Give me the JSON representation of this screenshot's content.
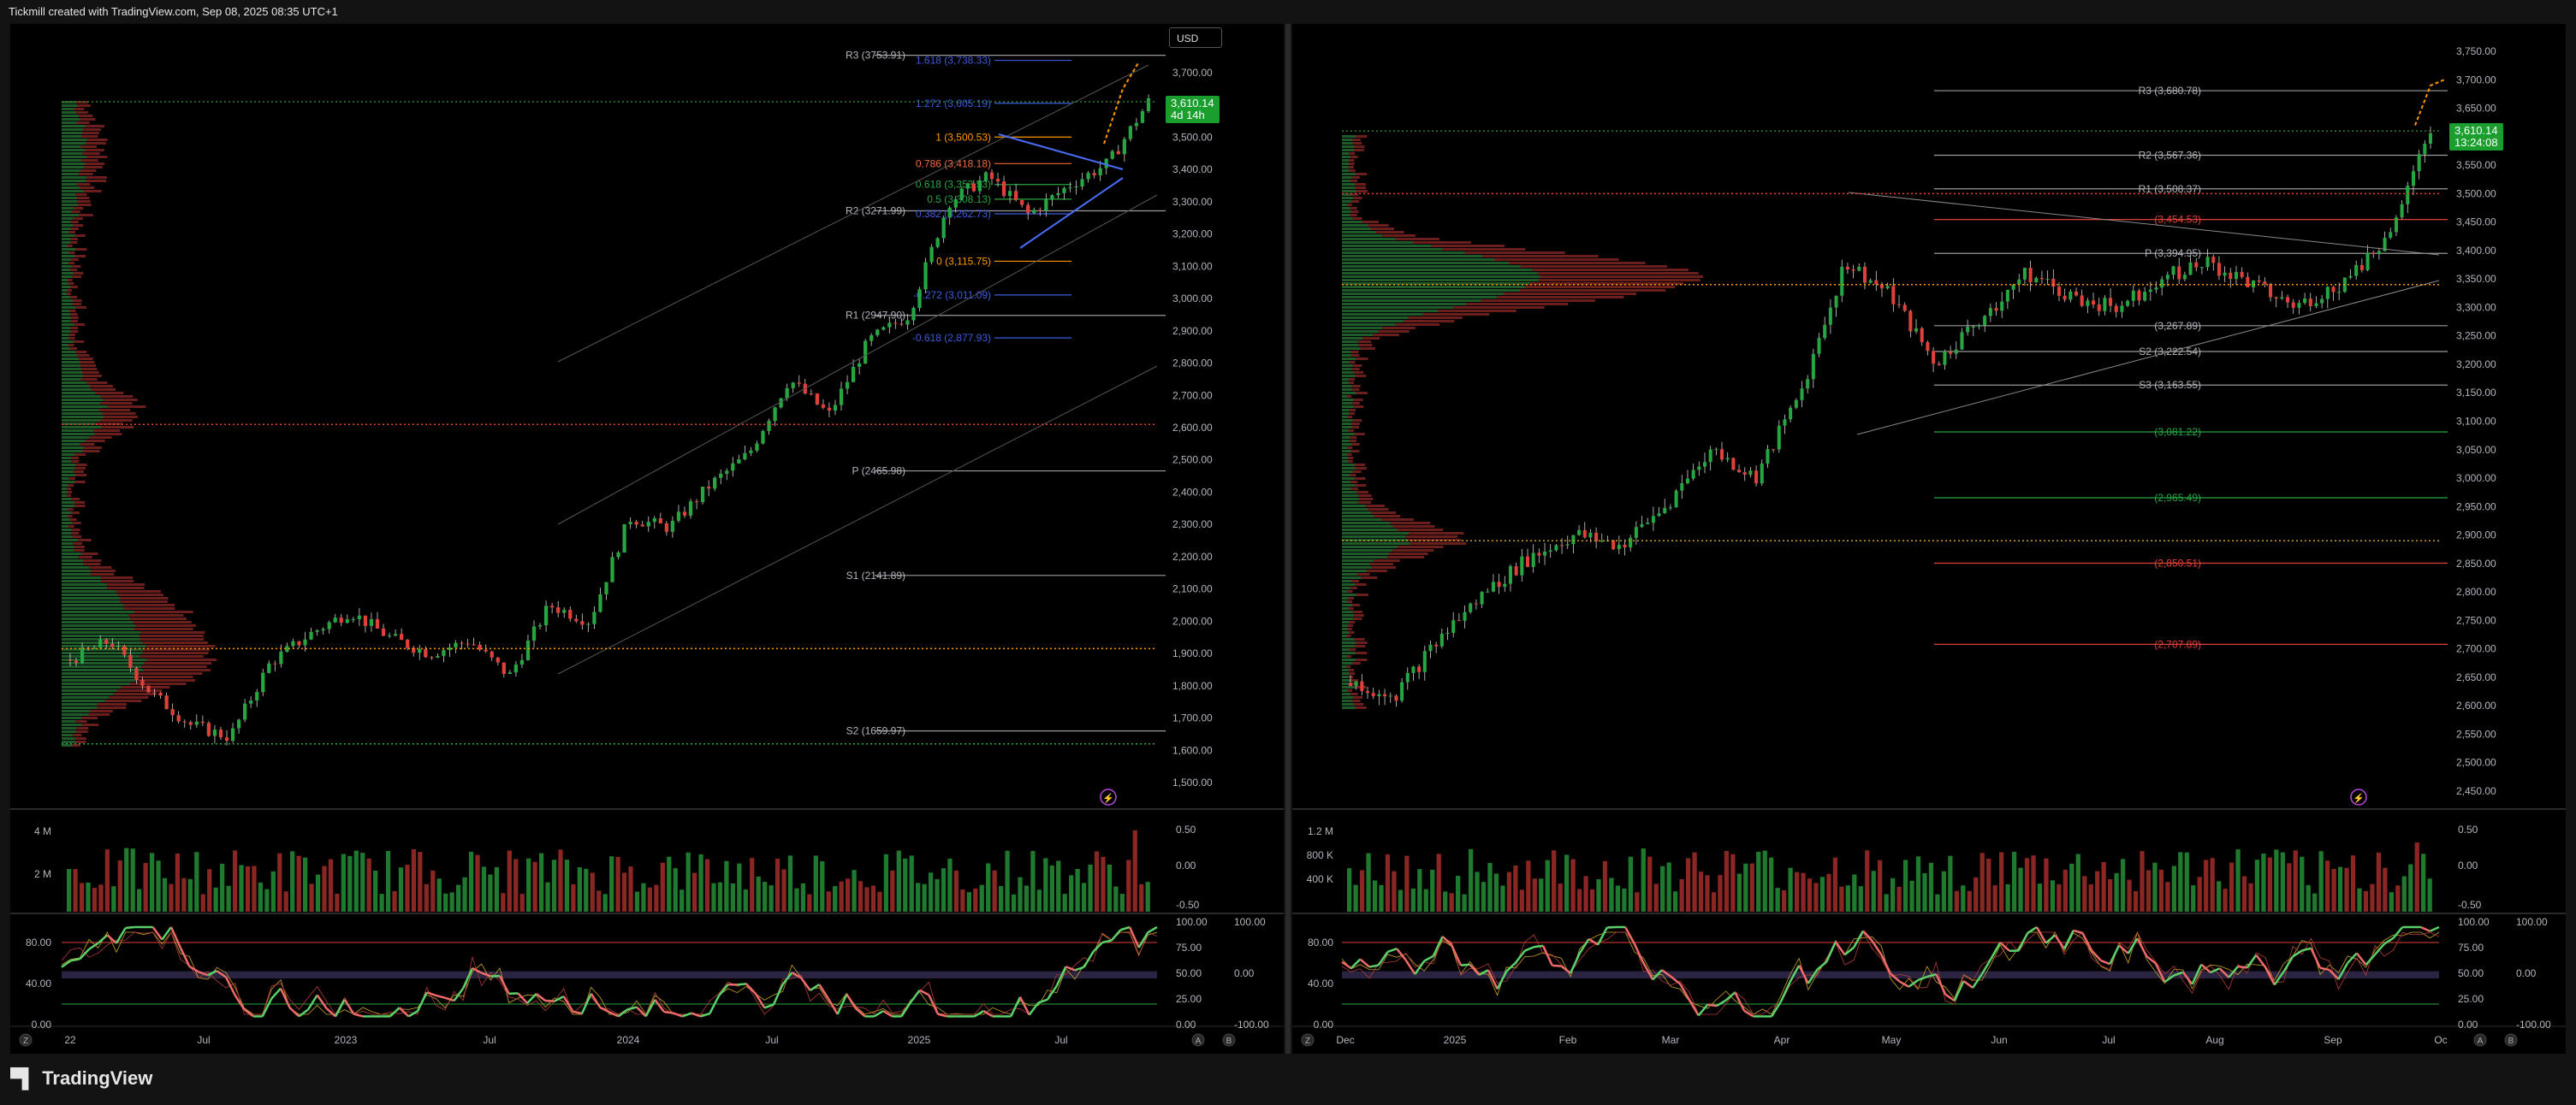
{
  "header": {
    "attribution": "Tickmill created with TradingView.com, Sep 08, 2025 08:35 UTC+1"
  },
  "footer": {
    "brand": "TradingView"
  },
  "colors": {
    "bull": "#26a641",
    "bear": "#e0403a",
    "pivot_red": "#e0403a",
    "pivot_green": "#26a641",
    "fib_blue": "#3b5bdb",
    "fib_orange": "#ff9800"
  },
  "left_chart": {
    "currency": "USD",
    "price_label": "3,610.14",
    "price_countdown": "4d 14h",
    "price_axis": [
      "3,700.00",
      "3,600.00",
      "3,500.00",
      "3,400.00",
      "3,300.00",
      "3,200.00",
      "3,100.00",
      "3,000.00",
      "2,900.00",
      "2,800.00",
      "2,700.00",
      "2,600.00",
      "2,500.00",
      "2,400.00",
      "2,300.00",
      "2,200.00",
      "2,100.00",
      "2,000.00",
      "1,900.00",
      "1,800.00",
      "1,700.00",
      "1,600.00",
      "1,500.00"
    ],
    "time_axis": [
      "22",
      "Jul",
      "2023",
      "Jul",
      "2024",
      "Jul",
      "2025",
      "Jul"
    ],
    "pivots": [
      {
        "label": "R3 (3753.91)",
        "value": 3753.91
      },
      {
        "label": "R2 (3271.99)",
        "value": 3271.99
      },
      {
        "label": "R1 (2947.90)",
        "value": 2947.9
      },
      {
        "label": "P (2465.98)",
        "value": 2465.98
      },
      {
        "label": "S1 (2141.89)",
        "value": 2141.89
      },
      {
        "label": "S2 (1659.97)",
        "value": 1659.97
      }
    ],
    "fib_levels": [
      {
        "label": "1.618 (3,738.33)",
        "value": 3738.33,
        "color": "blue"
      },
      {
        "label": "1.272 (3,605.19)",
        "value": 3605.19,
        "color": "blue"
      },
      {
        "label": "1 (3,500.53)",
        "value": 3500.53,
        "color": "orange"
      },
      {
        "label": "0.786 (3,418.18)",
        "value": 3418.18,
        "color": "red"
      },
      {
        "label": "0.618 (3,353.53)",
        "value": 3353.53,
        "color": "green"
      },
      {
        "label": "0.5 (3,308.13)",
        "value": 3308.13,
        "color": "green"
      },
      {
        "label": "0.382 (3,262.73)",
        "value": 3262.73,
        "color": "blue"
      },
      {
        "label": "0 (3,115.75)",
        "value": 3115.75,
        "color": "orange"
      },
      {
        "label": "-0.272 (3,011.09)",
        "value": 3011.09,
        "color": "blue"
      },
      {
        "label": "-0.618 (2,877.93)",
        "value": 2877.93,
        "color": "blue"
      }
    ],
    "volume_axis": [
      "4 M",
      "2 M"
    ],
    "volume_right_axis": [
      "0.50",
      "0.00",
      "-0.50"
    ],
    "oscillator_left_axis": [
      "80.00",
      "40.00",
      "0.00"
    ],
    "oscillator_right_axis": [
      "100.00",
      "75.00",
      "50.00",
      "25.00",
      "0.00"
    ],
    "oscillator_far_axis": [
      "100.00",
      "0.00",
      "-100.00"
    ],
    "bottom_markers": [
      "Z",
      "A",
      "B"
    ]
  },
  "right_chart": {
    "price_label": "3,610.14",
    "price_countdown": "13:24:08",
    "price_axis": [
      "3,750.00",
      "3,700.00",
      "3,650.00",
      "3,600.00",
      "3,550.00",
      "3,500.00",
      "3,450.00",
      "3,400.00",
      "3,350.00",
      "3,300.00",
      "3,250.00",
      "3,200.00",
      "3,150.00",
      "3,100.00",
      "3,050.00",
      "3,000.00",
      "2,950.00",
      "2,900.00",
      "2,850.00",
      "2,800.00",
      "2,750.00",
      "2,700.00",
      "2,650.00",
      "2,600.00",
      "2,550.00",
      "2,500.00",
      "2,450.00"
    ],
    "time_axis": [
      "Dec",
      "2025",
      "Feb",
      "Mar",
      "Apr",
      "May",
      "Jun",
      "Jul",
      "Aug",
      "Sep",
      "Oc"
    ],
    "pivots": [
      {
        "label": "R3 (3,680.78)",
        "value": 3680.78,
        "color": "gray"
      },
      {
        "label": "R2 (3,567.36)",
        "value": 3567.36,
        "color": "gray"
      },
      {
        "label": "R1 (3,508.37)",
        "value": 3508.37,
        "color": "gray"
      },
      {
        "label": "(3,454.53)",
        "value": 3454.53,
        "color": "red"
      },
      {
        "label": "P (3,394.95)",
        "value": 3394.95,
        "color": "gray"
      },
      {
        "label": "(3,267.89)",
        "value": 3267.89,
        "color": "gray"
      },
      {
        "label": "S2 (3,222.54)",
        "value": 3222.54,
        "color": "gray"
      },
      {
        "label": "S3 (3,163.55)",
        "value": 3163.55,
        "color": "gray"
      },
      {
        "label": "(3,081.22)",
        "value": 3081.22,
        "color": "green"
      },
      {
        "label": "(2,965.49)",
        "value": 2965.49,
        "color": "green"
      },
      {
        "label": "(2,850.51)",
        "value": 2850.51,
        "color": "red"
      },
      {
        "label": "(2,707.89)",
        "value": 2707.89,
        "color": "red"
      }
    ],
    "volume_axis": [
      "1.2 M",
      "800 K",
      "400 K"
    ],
    "volume_right_axis": [
      "0.50",
      "0.00",
      "-0.50"
    ],
    "oscillator_left_axis": [
      "80.00",
      "40.00",
      "0.00"
    ],
    "oscillator_right_axis": [
      "100.00",
      "75.00",
      "50.00",
      "25.00",
      "0.00"
    ],
    "oscillator_far_axis": [
      "100.00",
      "0.00",
      "-100.00"
    ],
    "bottom_markers": [
      "Z",
      "A",
      "B"
    ]
  },
  "chart_data": [
    {
      "type": "line",
      "subtype": "candlestick",
      "title": "",
      "xlabel": "",
      "ylabel": "",
      "x": [
        "2022-04",
        "2022-07",
        "2022-10",
        "2023-01",
        "2023-04",
        "2023-07",
        "2023-10",
        "2024-01",
        "2024-04",
        "2024-07",
        "2024-10",
        "2025-01",
        "2025-04",
        "2025-07",
        "2025-09"
      ],
      "series": [
        {
          "values": [
            1900,
            1760,
            1640,
            1900,
            1990,
            1950,
            1840,
            2050,
            2330,
            2420,
            2700,
            2650,
            3300,
            3350,
            3610
          ]
        }
      ],
      "ylim": [
        1500,
        3760
      ],
      "grid": false,
      "legend": "none"
    },
    {
      "type": "line",
      "subtype": "candlestick",
      "title": "",
      "xlabel": "",
      "ylabel": "",
      "x": [
        "2024-12",
        "2025-01",
        "2025-02",
        "2025-03",
        "2025-04",
        "2025-05",
        "2025-06",
        "2025-07",
        "2025-08",
        "2025-09"
      ],
      "series": [
        {
          "values": [
            2640,
            2700,
            2900,
            2950,
            3380,
            3260,
            3350,
            3340,
            3350,
            3610
          ]
        }
      ],
      "ylim": [
        2430,
        3760
      ],
      "grid": false,
      "legend": "none"
    }
  ]
}
